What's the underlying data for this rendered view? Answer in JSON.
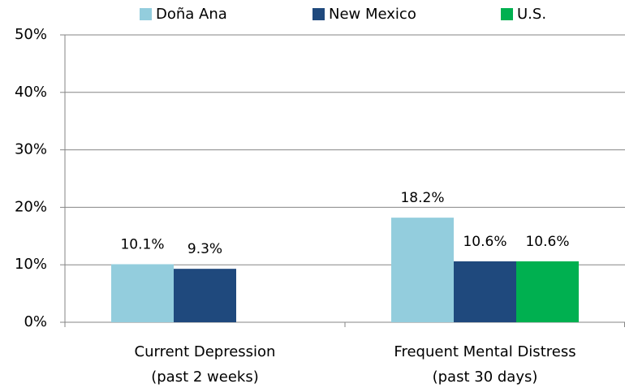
{
  "chart_data": {
    "type": "bar",
    "categories": [
      [
        "Current Depression",
        "(past 2 weeks)"
      ],
      [
        "Frequent Mental Distress",
        "(past 30 days)"
      ]
    ],
    "series": [
      {
        "name": "Doña Ana",
        "color": "#93cddd",
        "values": [
          10.1,
          18.2
        ],
        "value_labels": [
          "10.1%",
          "18.2%"
        ]
      },
      {
        "name": "New Mexico",
        "color": "#1f497d",
        "values": [
          9.3,
          10.6
        ],
        "value_labels": [
          "9.3%",
          "10.6%"
        ]
      },
      {
        "name": "U.S.",
        "color": "#00b050",
        "values": [
          null,
          10.6
        ],
        "value_labels": [
          null,
          "10.6%"
        ]
      }
    ],
    "ylim": [
      0,
      50
    ],
    "yticks": [
      {
        "value": 0,
        "label": "0%"
      },
      {
        "value": 10,
        "label": "10%"
      },
      {
        "value": 20,
        "label": "20%"
      },
      {
        "value": 30,
        "label": "30%"
      },
      {
        "value": 40,
        "label": "40%"
      },
      {
        "value": 50,
        "label": "50%"
      }
    ],
    "grid": true,
    "legend": "top"
  }
}
